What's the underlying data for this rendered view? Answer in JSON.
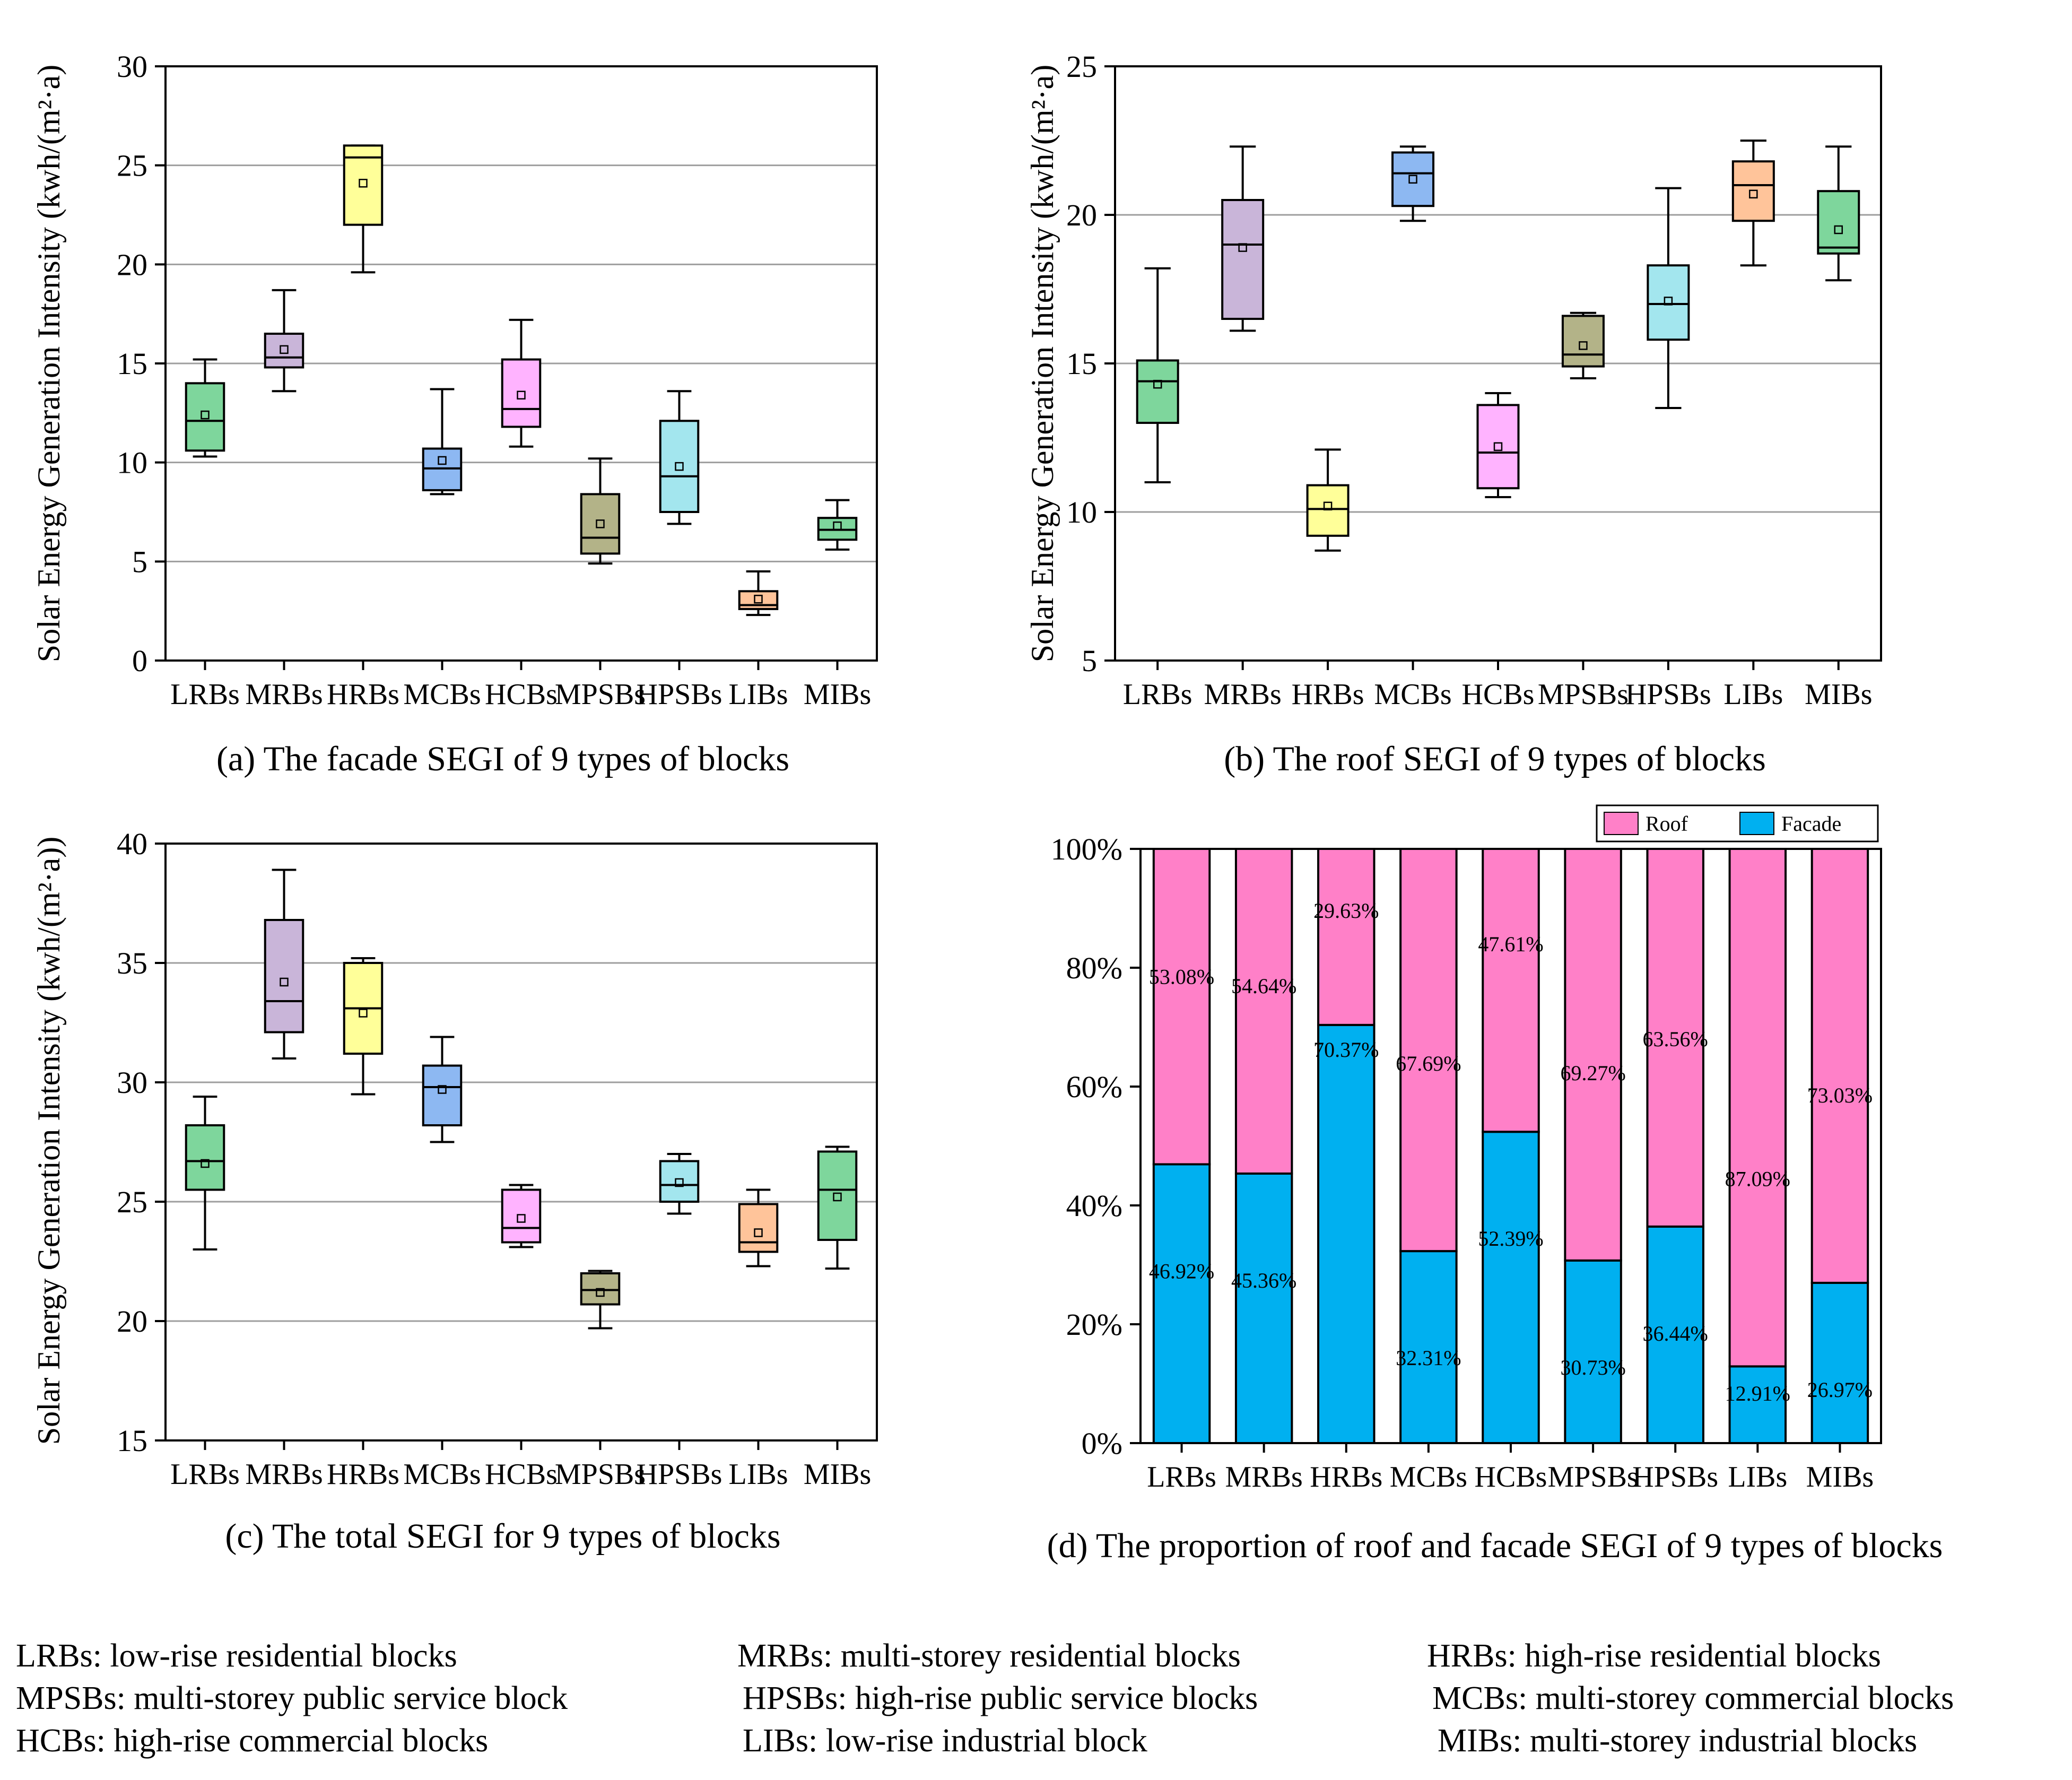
{
  "chart_data": [
    {
      "type": "box",
      "title": "(a) The facade SEGI of 9 types of blocks",
      "ylabel": "Solar Energy Generation Intensity (kwh/(m²·a)",
      "ylim": [
        0,
        30
      ],
      "yticks": [
        0,
        5,
        10,
        15,
        20,
        25,
        30
      ],
      "grid": true,
      "categories": [
        "LRBs",
        "MRBs",
        "HRBs",
        "MCBs",
        "HCBs",
        "MPSBs",
        "HPSBs",
        "LIBs",
        "MIBs"
      ],
      "colors": [
        "#7ed69c",
        "#c9b5d9",
        "#ffff99",
        "#8db8f2",
        "#ffb3ff",
        "#b3b388",
        "#a3e6ee",
        "#ffc49a",
        "#7ed69c"
      ],
      "boxes": [
        {
          "min": 10.3,
          "q1": 10.6,
          "median": 12.1,
          "q3": 14.0,
          "max": 15.2,
          "mean": 12.4
        },
        {
          "min": 13.6,
          "q1": 14.8,
          "median": 15.3,
          "q3": 16.5,
          "max": 18.7,
          "mean": 15.7
        },
        {
          "min": 19.6,
          "q1": 22.0,
          "median": 25.4,
          "q3": 26.0,
          "max": 26.0,
          "mean": 24.1
        },
        {
          "min": 8.4,
          "q1": 8.6,
          "median": 9.7,
          "q3": 10.7,
          "max": 13.7,
          "mean": 10.1
        },
        {
          "min": 10.8,
          "q1": 11.8,
          "median": 12.7,
          "q3": 15.2,
          "max": 17.2,
          "mean": 13.4
        },
        {
          "min": 4.9,
          "q1": 5.4,
          "median": 6.2,
          "q3": 8.4,
          "max": 10.2,
          "mean": 6.9
        },
        {
          "min": 6.9,
          "q1": 7.5,
          "median": 9.3,
          "q3": 12.1,
          "max": 13.6,
          "mean": 9.8
        },
        {
          "min": 2.3,
          "q1": 2.6,
          "median": 2.8,
          "q3": 3.5,
          "max": 4.5,
          "mean": 3.1
        },
        {
          "min": 5.6,
          "q1": 6.1,
          "median": 6.6,
          "q3": 7.2,
          "max": 8.1,
          "mean": 6.8
        }
      ]
    },
    {
      "type": "box",
      "title": "(b) The roof SEGI of 9 types of blocks",
      "ylabel": "Solar Energy Generation Intensity (kwh/(m²·a)",
      "ylim": [
        5,
        25
      ],
      "yticks": [
        5,
        10,
        15,
        20,
        25
      ],
      "grid": true,
      "categories": [
        "LRBs",
        "MRBs",
        "HRBs",
        "MCBs",
        "HCBs",
        "MPSBs",
        "HPSBs",
        "LIBs",
        "MIBs"
      ],
      "colors": [
        "#7ed69c",
        "#c9b5d9",
        "#ffff99",
        "#8db8f2",
        "#ffb3ff",
        "#b3b388",
        "#a3e6ee",
        "#ffc49a",
        "#7ed69c"
      ],
      "boxes": [
        {
          "min": 11.0,
          "q1": 13.0,
          "median": 14.4,
          "q3": 15.1,
          "max": 18.2,
          "mean": 14.3
        },
        {
          "min": 16.1,
          "q1": 16.5,
          "median": 19.0,
          "q3": 20.5,
          "max": 22.3,
          "mean": 18.9
        },
        {
          "min": 8.7,
          "q1": 9.2,
          "median": 10.1,
          "q3": 10.9,
          "max": 12.1,
          "mean": 10.2
        },
        {
          "min": 19.8,
          "q1": 20.3,
          "median": 21.4,
          "q3": 22.1,
          "max": 22.3,
          "mean": 21.2
        },
        {
          "min": 10.5,
          "q1": 10.8,
          "median": 12.0,
          "q3": 13.6,
          "max": 14.0,
          "mean": 12.2
        },
        {
          "min": 14.5,
          "q1": 14.9,
          "median": 15.3,
          "q3": 16.6,
          "max": 16.7,
          "mean": 15.6
        },
        {
          "min": 13.5,
          "q1": 15.8,
          "median": 17.0,
          "q3": 18.3,
          "max": 20.9,
          "mean": 17.1
        },
        {
          "min": 18.3,
          "q1": 19.8,
          "median": 21.0,
          "q3": 21.8,
          "max": 22.5,
          "mean": 20.7
        },
        {
          "min": 17.8,
          "q1": 18.7,
          "median": 18.9,
          "q3": 20.8,
          "max": 22.3,
          "mean": 19.5
        }
      ]
    },
    {
      "type": "box",
      "title": "(c) The total SEGI for 9 types of blocks",
      "ylabel": "Solar Energy Generation Intensity (kwh/(m²·a))",
      "ylim": [
        15,
        40
      ],
      "yticks": [
        15,
        20,
        25,
        30,
        35,
        40
      ],
      "grid": true,
      "categories": [
        "LRBs",
        "MRBs",
        "HRBs",
        "MCBs",
        "HCBs",
        "MPSBs",
        "HPSBs",
        "LIBs",
        "MIBs"
      ],
      "colors": [
        "#7ed69c",
        "#c9b5d9",
        "#ffff99",
        "#8db8f2",
        "#ffb3ff",
        "#b3b388",
        "#a3e6ee",
        "#ffc49a",
        "#7ed69c"
      ],
      "boxes": [
        {
          "min": 23.0,
          "q1": 25.5,
          "median": 26.7,
          "q3": 28.2,
          "max": 29.4,
          "mean": 26.6
        },
        {
          "min": 31.0,
          "q1": 32.1,
          "median": 33.4,
          "q3": 36.8,
          "max": 38.9,
          "mean": 34.2
        },
        {
          "min": 29.5,
          "q1": 31.2,
          "median": 33.1,
          "q3": 35.0,
          "max": 35.2,
          "mean": 32.9
        },
        {
          "min": 27.5,
          "q1": 28.2,
          "median": 29.8,
          "q3": 30.7,
          "max": 31.9,
          "mean": 29.7
        },
        {
          "min": 23.1,
          "q1": 23.3,
          "median": 23.9,
          "q3": 25.5,
          "max": 25.7,
          "mean": 24.3
        },
        {
          "min": 19.7,
          "q1": 20.7,
          "median": 21.3,
          "q3": 22.0,
          "max": 22.1,
          "mean": 21.2
        },
        {
          "min": 24.5,
          "q1": 25.0,
          "median": 25.7,
          "q3": 26.7,
          "max": 27.0,
          "mean": 25.8
        },
        {
          "min": 22.3,
          "q1": 22.9,
          "median": 23.3,
          "q3": 24.9,
          "max": 25.5,
          "mean": 23.7
        },
        {
          "min": 22.2,
          "q1": 23.4,
          "median": 25.5,
          "q3": 27.1,
          "max": 27.3,
          "mean": 25.2
        }
      ]
    },
    {
      "type": "stacked_bar",
      "title": "(d) The proportion of  roof and facade SEGI of 9 types of blocks",
      "ylim": [
        0,
        100
      ],
      "yticks": [
        "0%",
        "20%",
        "40%",
        "60%",
        "80%",
        "100%"
      ],
      "categories": [
        "LRBs",
        "MRBs",
        "HRBs",
        "MCBs",
        "HCBs",
        "MPSBs",
        "HPSBs",
        "LIBs",
        "MIBs"
      ],
      "legend_position": "top-right",
      "series": [
        {
          "name": "Facade",
          "color": "#00b0f0",
          "values": [
            46.92,
            45.36,
            70.37,
            32.31,
            52.39,
            30.73,
            36.44,
            12.91,
            26.97
          ],
          "labels": [
            "46.92%",
            "45.36%",
            "70.37%",
            "32.31%",
            "52.39%",
            "30.73%",
            "36.44%",
            "12.91%",
            "26.97%"
          ]
        },
        {
          "name": "Roof",
          "color": "#ff80c8",
          "values": [
            53.08,
            54.64,
            29.63,
            67.69,
            47.61,
            69.27,
            63.56,
            87.09,
            73.03
          ],
          "labels": [
            "53.08%",
            "54.64%",
            "29.63%",
            "67.69%",
            "47.61%",
            "69.27%",
            "63.56%",
            "87.09%",
            "73.03%"
          ]
        }
      ]
    }
  ],
  "legend_text": [
    [
      "LRBs:  low-rise residential blocks",
      "MRBs: multi-storey residential blocks",
      "HRBs: high-rise residential blocks"
    ],
    [
      "MPSBs: multi-storey public service block",
      "HPSBs: high-rise public service blocks",
      "MCBs: multi-storey commercial blocks"
    ],
    [
      "HCBs: high-rise commercial blocks",
      "LIBs: low-rise industrial block",
      "MIBs: multi-storey industrial blocks"
    ]
  ]
}
